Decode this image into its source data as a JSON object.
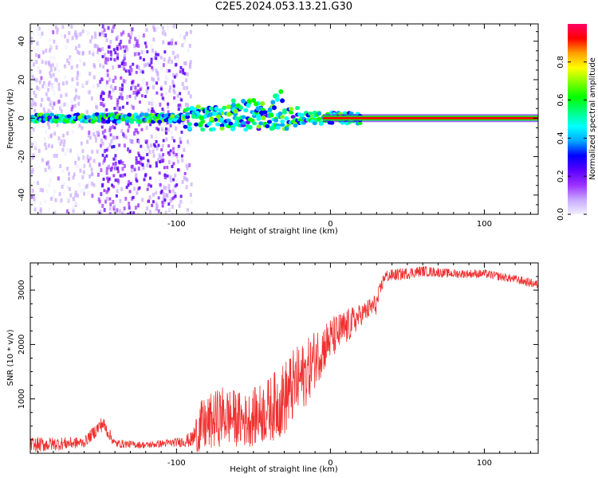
{
  "title": "C2E5.2024.053.13.21.G30",
  "chart_data": [
    {
      "type": "heatmap",
      "xlabel": "Height of straight line (km)",
      "ylabel": "Frequency (Hz)",
      "xlim": [
        -195,
        135
      ],
      "ylim": [
        -50,
        49
      ],
      "xticks": [
        -100,
        0,
        100
      ],
      "yticks": [
        -40,
        -20,
        0,
        20,
        40
      ],
      "xtick_labels": [
        "-100",
        "0",
        "100"
      ],
      "ytick_labels": [
        "-40",
        "-20",
        "0",
        "20",
        "40"
      ],
      "colorbar": {
        "label": "Normalized spectral amplitude",
        "range": [
          0,
          1
        ],
        "ticks": [
          "0.0",
          "0.2",
          "0.4",
          "0.6",
          "0.8"
        ],
        "colors": [
          "#f0f0ff",
          "#c8a8ff",
          "#9b30ff",
          "#5a00ff",
          "#0000ff",
          "#00a8ff",
          "#00ffff",
          "#00ff80",
          "#00ff00",
          "#80ff00",
          "#ffff00",
          "#ffa000",
          "#ff0000",
          "#ff0066"
        ]
      },
      "features": {
        "carrier_line": {
          "frequency": 0,
          "x_range": [
            -195,
            135
          ]
        },
        "noisy_region_x": [
          -195,
          -95
        ],
        "scintillation_region_x": [
          -95,
          20
        ],
        "steady_region_x": [
          20,
          135
        ]
      }
    },
    {
      "type": "line",
      "xlabel": "Height of straight line (km)",
      "ylabel": "SNR (10 * v/v)",
      "xlim": [
        -195,
        135
      ],
      "ylim": [
        0,
        3500
      ],
      "xticks": [
        -100,
        0,
        100
      ],
      "yticks": [
        1000,
        2000,
        3000
      ],
      "xtick_labels": [
        "-100",
        "0",
        "100"
      ],
      "ytick_labels": [
        "1000",
        "2000",
        "3000"
      ],
      "color": "#f03030",
      "series_profile": {
        "x": [
          -195,
          -160,
          -148,
          -140,
          -120,
          -100,
          -90,
          -85,
          -70,
          -55,
          -40,
          -30,
          -25,
          -15,
          -10,
          0,
          10,
          20,
          30,
          35,
          60,
          80,
          100,
          120,
          135
        ],
        "y": [
          150,
          200,
          550,
          180,
          150,
          200,
          250,
          450,
          700,
          600,
          800,
          1000,
          1200,
          1500,
          1750,
          2100,
          2300,
          2550,
          2750,
          3250,
          3350,
          3300,
          3300,
          3200,
          3100
        ],
        "noise": [
          150,
          100,
          150,
          80,
          60,
          80,
          150,
          500,
          550,
          500,
          600,
          700,
          700,
          600,
          550,
          400,
          350,
          200,
          200,
          120,
          100,
          80,
          80,
          80,
          80
        ]
      }
    }
  ]
}
